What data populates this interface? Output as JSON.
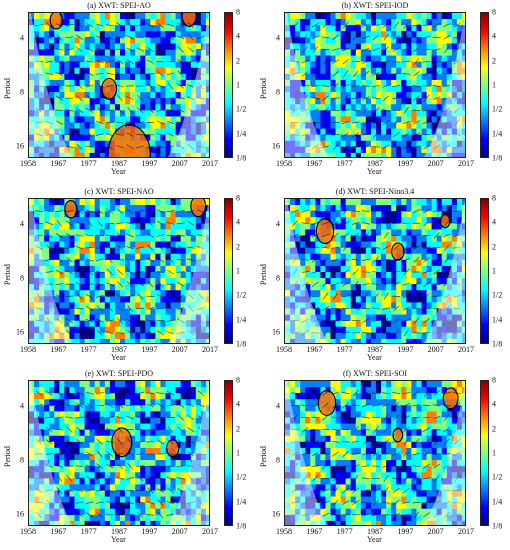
{
  "chart_data": [
    {
      "type": "heatmap",
      "title": "(a) XWT: SPEI-AO",
      "xlabel": "Year",
      "ylabel": "Period",
      "x_ticks": [
        "1958",
        "1967",
        "1977",
        "1987",
        "1997",
        "2007",
        "2017"
      ],
      "y_ticks": [
        "4",
        "8",
        "16"
      ],
      "colorbar_ticks": [
        "8",
        "4",
        "2",
        "1",
        "1/2",
        "1/4",
        "1/8"
      ]
    },
    {
      "type": "heatmap",
      "title": "(b) XWT: SPEI-IOD",
      "xlabel": "Year",
      "ylabel": "Period",
      "x_ticks": [
        "1958",
        "1967",
        "1977",
        "1987",
        "1997",
        "2007",
        "2017"
      ],
      "y_ticks": [
        "4",
        "8",
        "16"
      ],
      "colorbar_ticks": [
        "8",
        "4",
        "2",
        "1",
        "1/2",
        "1/4",
        "1/8"
      ]
    },
    {
      "type": "heatmap",
      "title": "(c) XWT: SPEI-NAO",
      "xlabel": "Year",
      "ylabel": "Period",
      "x_ticks": [
        "1958",
        "1967",
        "1977",
        "1987",
        "1997",
        "2007",
        "2017"
      ],
      "y_ticks": [
        "4",
        "8",
        "16"
      ],
      "colorbar_ticks": [
        "8",
        "4",
        "2",
        "1",
        "1/2",
        "1/4",
        "1/8"
      ]
    },
    {
      "type": "heatmap",
      "title": "(d) XWT: SPEI-Nino3.4",
      "xlabel": "Year",
      "ylabel": "Period",
      "x_ticks": [
        "1958",
        "1967",
        "1977",
        "1987",
        "1997",
        "2007",
        "2017"
      ],
      "y_ticks": [
        "4",
        "8",
        "16"
      ],
      "colorbar_ticks": [
        "8",
        "4",
        "2",
        "1",
        "1/2",
        "1/4",
        "1/8"
      ]
    },
    {
      "type": "heatmap",
      "title": "(e) XWT: SPEI-PDO",
      "xlabel": "Year",
      "ylabel": "Period",
      "x_ticks": [
        "1958",
        "1967",
        "1977",
        "1987",
        "1997",
        "2007",
        "2017"
      ],
      "y_ticks": [
        "4",
        "8",
        "16"
      ],
      "colorbar_ticks": [
        "8",
        "4",
        "2",
        "1",
        "1/2",
        "1/4",
        "1/8"
      ]
    },
    {
      "type": "heatmap",
      "title": "(f) XWT: SPEI-SOI",
      "xlabel": "Year",
      "ylabel": "Period",
      "x_ticks": [
        "1958",
        "1967",
        "1977",
        "1987",
        "1997",
        "2007",
        "2017"
      ],
      "y_ticks": [
        "4",
        "8",
        "16"
      ],
      "colorbar_ticks": [
        "8",
        "4",
        "2",
        "1",
        "1/2",
        "1/4",
        "1/8"
      ]
    }
  ],
  "colormap": [
    "#00008f",
    "#0000ff",
    "#0080ff",
    "#00ffff",
    "#80ff80",
    "#ffff00",
    "#ff8000",
    "#ff0000",
    "#800000"
  ]
}
